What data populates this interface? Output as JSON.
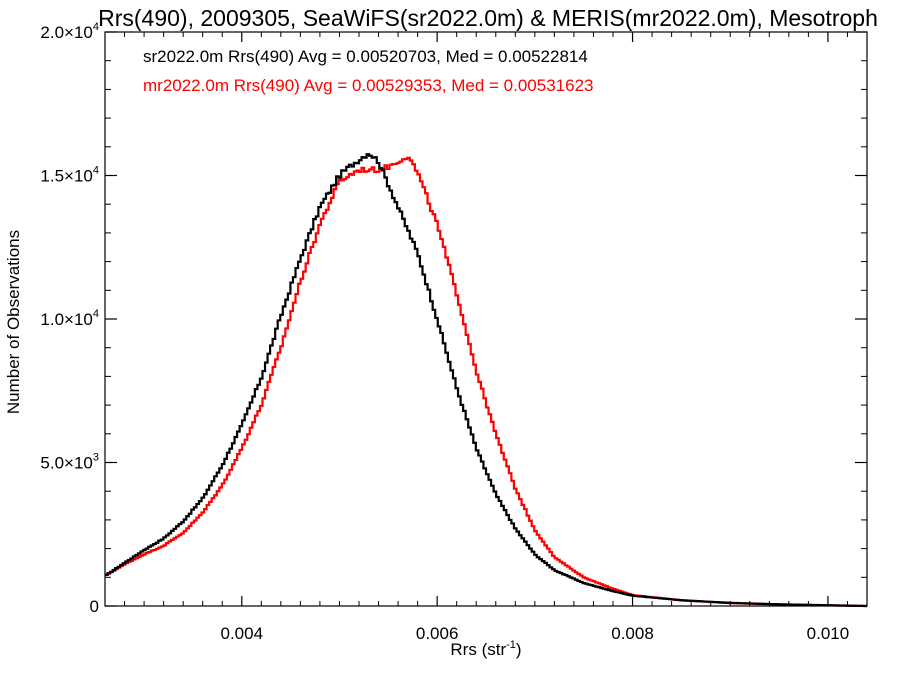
{
  "chart_data": {
    "type": "line",
    "title": "Rrs(490), 2009305, SeaWiFS(sr2022.0m) & MERIS(mr2022.0m), Mesotroph",
    "xlabel": "Rrs (str",
    "xlabel_sup": "-1",
    "xlabel_end": ")",
    "ylabel": "Number of Observations",
    "xlim": [
      0.0026,
      0.0104
    ],
    "ylim": [
      0,
      20000
    ],
    "x_ticks": [
      {
        "value": 0.004,
        "label": "0.004"
      },
      {
        "value": 0.006,
        "label": "0.006"
      },
      {
        "value": 0.008,
        "label": "0.008"
      },
      {
        "value": 0.01,
        "label": "0.010"
      }
    ],
    "y_ticks": [
      {
        "value": 0,
        "mant": "0",
        "exp": ""
      },
      {
        "value": 5000,
        "mant": "5.0×10",
        "exp": "3"
      },
      {
        "value": 10000,
        "mant": "1.0×10",
        "exp": "4"
      },
      {
        "value": 15000,
        "mant": "1.5×10",
        "exp": "4"
      },
      {
        "value": 20000,
        "mant": "2.0×10",
        "exp": "4"
      }
    ],
    "grid": false,
    "series": [
      {
        "name": "sr2022.0m Rrs(490) Avg = 0.00520703, Med = 0.00522814",
        "color": "#000000",
        "x": [
          0.0026,
          0.0028,
          0.003,
          0.0032,
          0.0034,
          0.0036,
          0.0038,
          0.004,
          0.0042,
          0.0044,
          0.0046,
          0.0048,
          0.005,
          0.0051,
          0.0052,
          0.0053,
          0.0054,
          0.0055,
          0.0056,
          0.0058,
          0.006,
          0.0062,
          0.0064,
          0.0066,
          0.0068,
          0.007,
          0.0072,
          0.0075,
          0.0078,
          0.008,
          0.0085,
          0.009,
          0.0095,
          0.0104
        ],
        "y": [
          1050,
          1500,
          1950,
          2350,
          2950,
          3750,
          4900,
          6300,
          7950,
          10100,
          12100,
          13900,
          15000,
          15300,
          15550,
          15800,
          15500,
          14700,
          13900,
          12300,
          10000,
          7600,
          5500,
          3900,
          2700,
          1800,
          1250,
          800,
          520,
          360,
          200,
          110,
          60,
          0
        ]
      },
      {
        "name": "mr2022.0m Rrs(490) Avg = 0.00529353, Med = 0.00531623",
        "color": "#ff0000",
        "x": [
          0.0026,
          0.0028,
          0.003,
          0.0032,
          0.0034,
          0.0036,
          0.0038,
          0.004,
          0.0042,
          0.0044,
          0.0046,
          0.0048,
          0.005,
          0.0052,
          0.0053,
          0.0054,
          0.0055,
          0.0056,
          0.0057,
          0.0058,
          0.006,
          0.0062,
          0.0064,
          0.0066,
          0.0068,
          0.007,
          0.0072,
          0.0075,
          0.0078,
          0.008,
          0.0085,
          0.009,
          0.0095,
          0.0104
        ],
        "y": [
          1050,
          1450,
          1800,
          2100,
          2550,
          3250,
          4200,
          5500,
          7000,
          9000,
          11300,
          13300,
          14800,
          15200,
          15200,
          15200,
          15300,
          15500,
          15700,
          15100,
          13300,
          10900,
          8200,
          6000,
          4100,
          2650,
          1700,
          1000,
          600,
          380,
          200,
          100,
          50,
          0
        ]
      }
    ]
  }
}
